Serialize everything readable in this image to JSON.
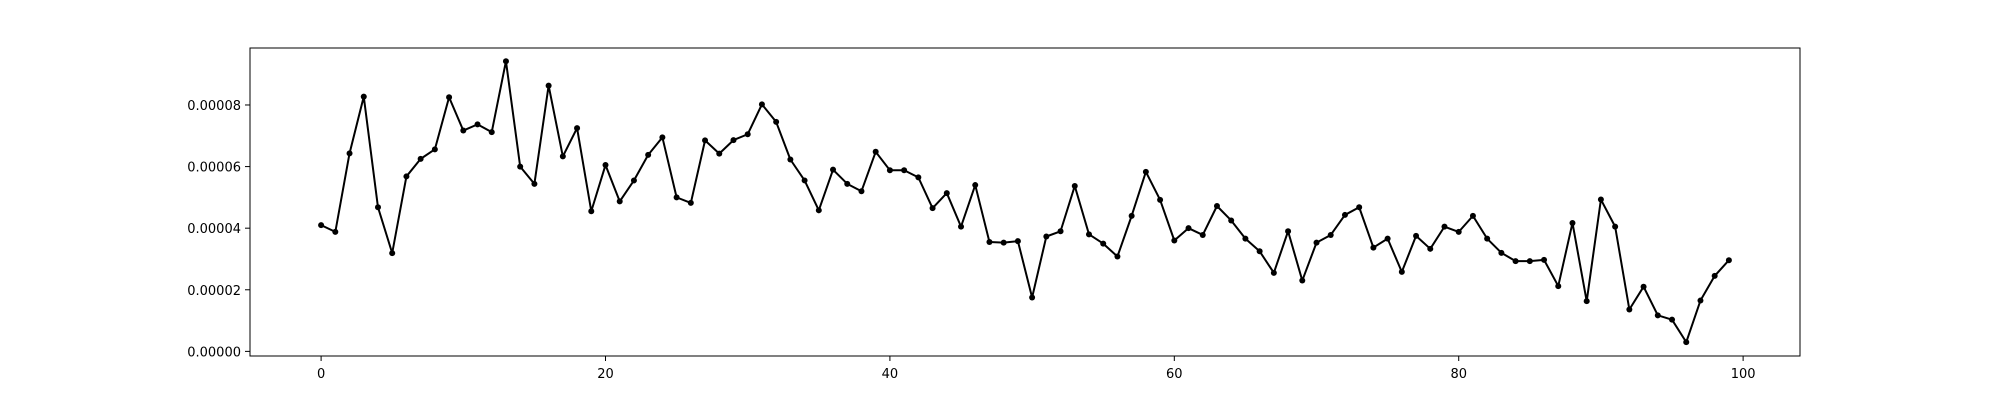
{
  "chart_data": {
    "type": "line",
    "x": [
      0,
      1,
      2,
      3,
      4,
      5,
      6,
      7,
      8,
      9,
      10,
      11,
      12,
      13,
      14,
      15,
      16,
      17,
      18,
      19,
      20,
      21,
      22,
      23,
      24,
      25,
      26,
      27,
      28,
      29,
      30,
      31,
      32,
      33,
      34,
      35,
      36,
      37,
      38,
      39,
      40,
      41,
      42,
      43,
      44,
      45,
      46,
      47,
      48,
      49,
      50,
      51,
      52,
      53,
      54,
      55,
      56,
      57,
      58,
      59,
      60,
      61,
      62,
      63,
      64,
      65,
      66,
      67,
      68,
      69,
      70,
      71,
      72,
      73,
      74,
      75,
      76,
      77,
      78,
      79,
      80,
      81,
      82,
      83,
      84,
      85,
      86,
      87,
      88,
      89,
      90,
      91,
      92,
      93,
      94,
      95,
      96,
      97,
      98,
      99
    ],
    "series": [
      {
        "color": "#000000",
        "marker": "circle",
        "values": [
          4.1e-05,
          3.88e-05,
          6.43e-05,
          8.27e-05,
          4.68e-05,
          3.19e-05,
          5.68e-05,
          6.25e-05,
          6.56e-05,
          8.25e-05,
          7.17e-05,
          7.37e-05,
          7.12e-05,
          9.42e-05,
          6e-05,
          5.44e-05,
          8.63e-05,
          6.33e-05,
          7.25e-05,
          4.55e-05,
          6.05e-05,
          4.87e-05,
          5.55e-05,
          6.38e-05,
          6.95e-05,
          5e-05,
          4.82e-05,
          6.85e-05,
          6.42e-05,
          6.86e-05,
          7.05e-05,
          8.02e-05,
          7.45e-05,
          6.23e-05,
          5.55e-05,
          4.58e-05,
          5.9e-05,
          5.44e-05,
          5.2e-05,
          6.48e-05,
          5.88e-05,
          5.88e-05,
          5.65e-05,
          4.65e-05,
          5.14e-05,
          4.05e-05,
          5.4e-05,
          3.55e-05,
          3.53e-05,
          3.58e-05,
          1.75e-05,
          3.73e-05,
          3.9e-05,
          5.37e-05,
          3.8e-05,
          3.5e-05,
          3.08e-05,
          4.4e-05,
          5.83e-05,
          4.92e-05,
          3.6e-05,
          4e-05,
          3.78e-05,
          4.72e-05,
          4.25e-05,
          3.66e-05,
          3.25e-05,
          2.55e-05,
          3.9e-05,
          2.3e-05,
          3.53e-05,
          3.78e-05,
          4.43e-05,
          4.68e-05,
          3.37e-05,
          3.66e-05,
          2.58e-05,
          3.75e-05,
          3.33e-05,
          4.05e-05,
          3.88e-05,
          4.4e-05,
          3.66e-05,
          3.2e-05,
          2.93e-05,
          2.93e-05,
          2.97e-05,
          2.12e-05,
          4.17e-05,
          1.63e-05,
          4.93e-05,
          4.05e-05,
          1.36e-05,
          2.1e-05,
          1.17e-05,
          1.03e-05,
          3e-06,
          1.65e-05,
          2.45e-05,
          2.96e-05
        ]
      }
    ],
    "xlim": [
      -5,
      104
    ],
    "ylim": [
      -1.5e-06,
      9.85e-05
    ],
    "xticks": [
      0,
      20,
      40,
      60,
      80,
      100
    ],
    "xtick_labels": [
      "0",
      "20",
      "40",
      "60",
      "80",
      "100"
    ],
    "yticks": [
      0,
      2e-05,
      4e-05,
      6e-05,
      8e-05
    ],
    "ytick_labels": [
      "0.00000",
      "0.00002",
      "0.00004",
      "0.00006",
      "0.00008"
    ],
    "grid": false,
    "title": "",
    "xlabel": "",
    "ylabel": ""
  }
}
